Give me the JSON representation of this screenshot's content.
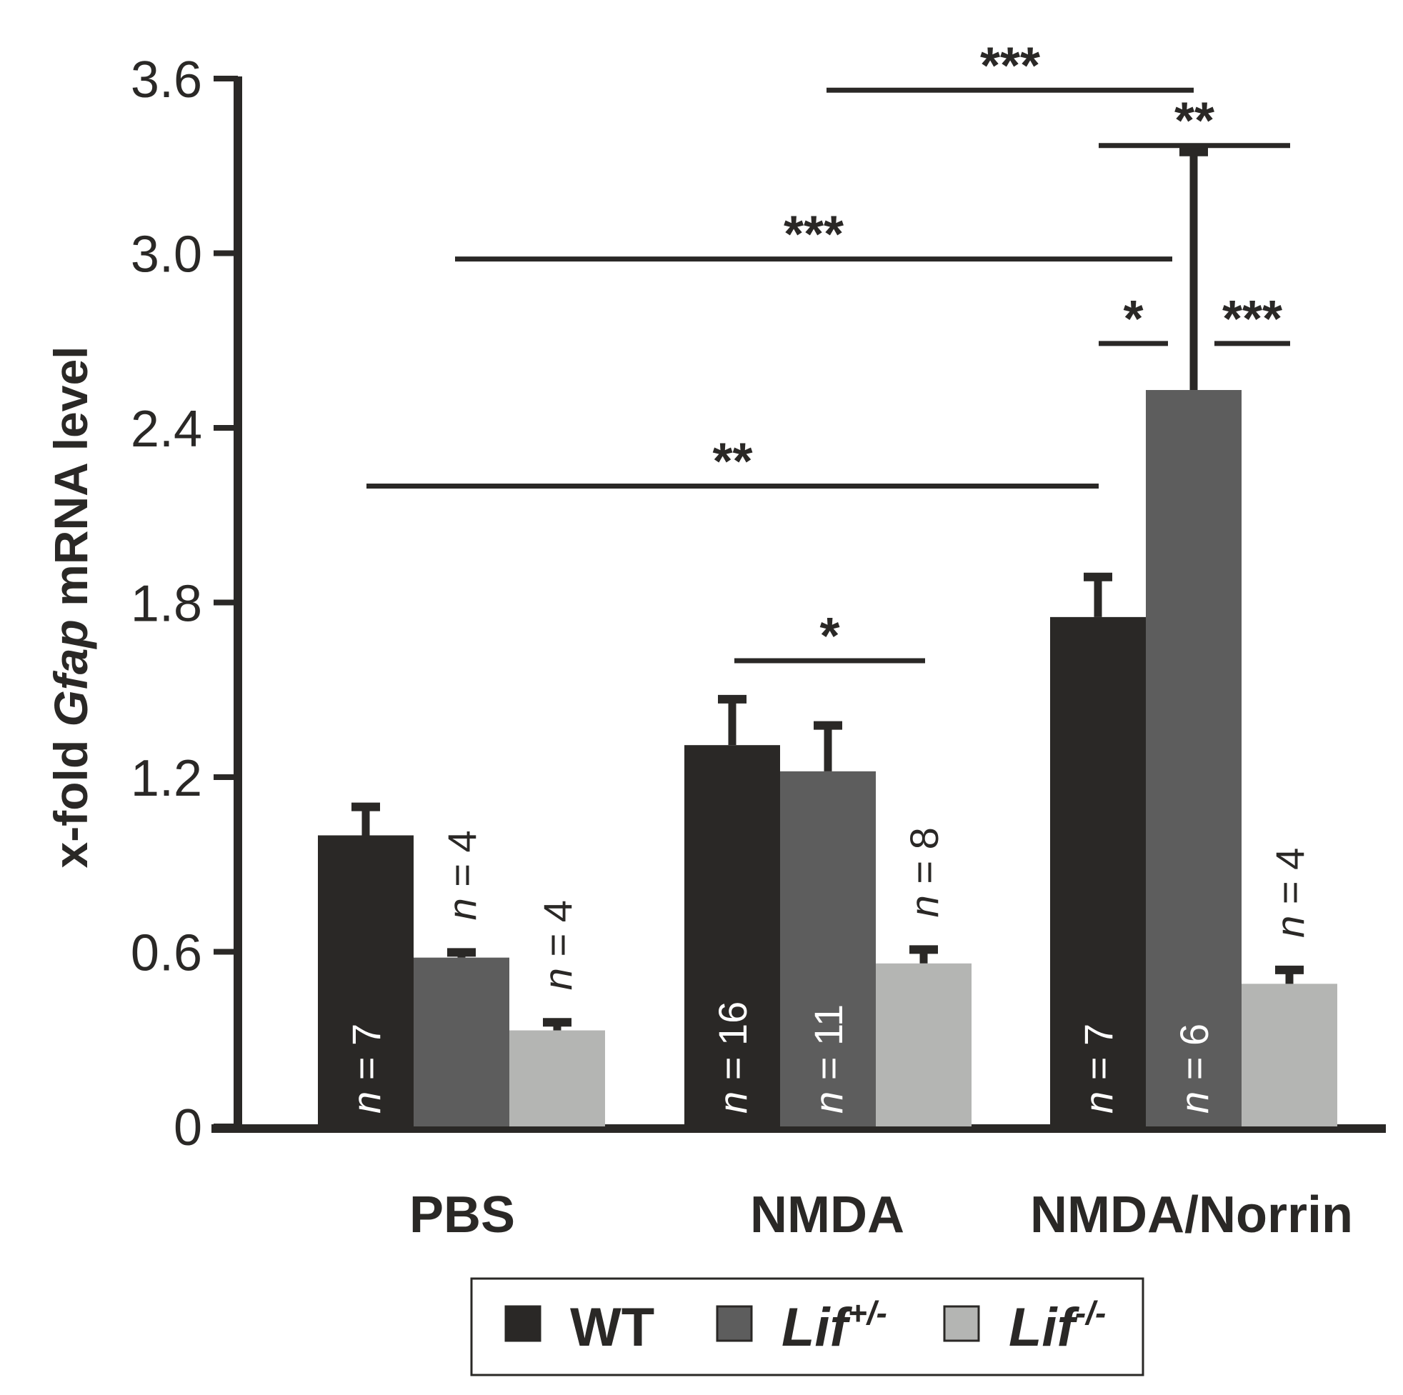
{
  "chart_data": {
    "type": "bar",
    "title": "",
    "xlabel": "",
    "ylabel_parts": [
      "x-fold ",
      "Gfap",
      " mRNA level"
    ],
    "ylim": [
      0,
      3.6
    ],
    "yticks": [
      "0",
      "0.6",
      "1.2",
      "1.8",
      "2.4",
      "3.0",
      "3.6"
    ],
    "ytick_values": [
      0,
      0.6,
      1.2,
      1.8,
      2.4,
      3.0,
      3.6
    ],
    "categories": [
      "PBS",
      "NMDA",
      "NMDA/Norrin"
    ],
    "series": [
      {
        "name": "WT",
        "color": "#2a2826",
        "values": [
          1.0,
          1.31,
          1.75
        ],
        "errors": [
          0.11,
          0.17,
          0.15
        ],
        "n_labels": [
          "n = 7",
          "n = 16",
          "n = 7"
        ]
      },
      {
        "name": "Lif+/-",
        "color": "#5d5d5d",
        "values": [
          0.58,
          1.22,
          2.53
        ],
        "errors": [
          0.03,
          0.17,
          0.83
        ],
        "n_labels": [
          "n = 4",
          "n = 11",
          "n = 6"
        ]
      },
      {
        "name": "Lif-/-",
        "color": "#b4b5b3",
        "values": [
          0.33,
          0.56,
          0.49
        ],
        "errors": [
          0.04,
          0.06,
          0.06
        ],
        "n_labels": [
          "n = 4",
          "n = 8",
          "n = 4"
        ]
      }
    ],
    "significance": [
      {
        "label": "***",
        "from": [
          1,
          0
        ],
        "to": [
          2,
          1
        ],
        "y": 3.56
      },
      {
        "label": "**",
        "from": [
          2,
          0
        ],
        "to": [
          2,
          2
        ],
        "y": 3.37
      },
      {
        "label": "***",
        "from": [
          0,
          1
        ],
        "to": [
          2,
          1
        ],
        "y": 2.98
      },
      {
        "label": "*",
        "from": [
          2,
          0
        ],
        "to": [
          2,
          1
        ],
        "y": 2.69
      },
      {
        "label": "***",
        "from": [
          2,
          1
        ],
        "to": [
          2,
          2
        ],
        "y": 2.69
      },
      {
        "label": "**",
        "from": [
          0,
          0
        ],
        "to": [
          2,
          0
        ],
        "y": 2.2
      },
      {
        "label": "*",
        "from": [
          1,
          0
        ],
        "to": [
          1,
          2
        ],
        "y": 1.6
      }
    ],
    "legend": {
      "placement": "bottom",
      "entries": [
        {
          "base": "WT",
          "sup": "",
          "italic": false
        },
        {
          "base": "Lif",
          "sup": "+/-",
          "italic": true
        },
        {
          "base": "Lif",
          "sup": "-/-",
          "italic": true
        }
      ]
    }
  }
}
